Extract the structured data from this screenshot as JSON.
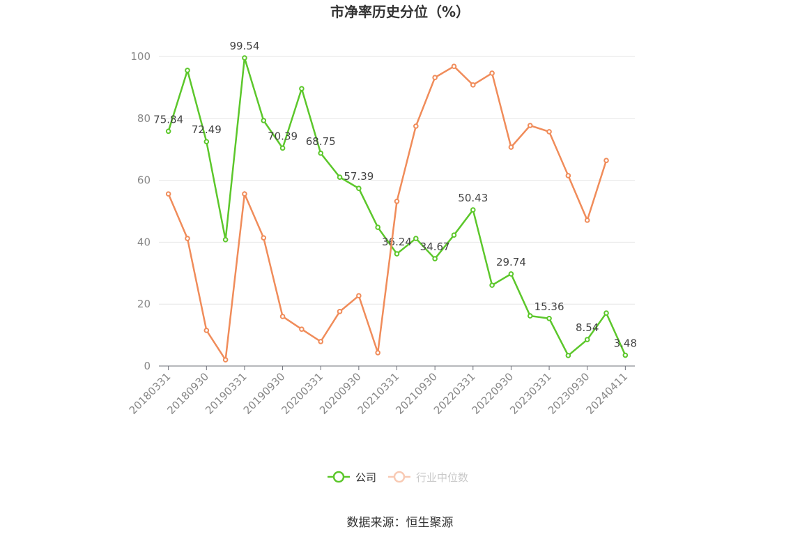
{
  "chart_data": {
    "type": "line",
    "title": "市净率历史分位（%）",
    "source": "数据来源：恒生聚源",
    "categories": [
      "20180331",
      null,
      "20180930",
      null,
      "20190331",
      null,
      "20190930",
      null,
      "20200331",
      null,
      "20200930",
      null,
      "20210331",
      null,
      "20210930",
      null,
      "20220331",
      null,
      "20220930",
      null,
      "20230331",
      null,
      "20230930",
      null,
      "20240411"
    ],
    "series": [
      {
        "name": "公司",
        "color": "#5cc72b",
        "values": [
          75.84,
          95.5,
          72.49,
          40.8,
          99.54,
          79.3,
          70.39,
          89.6,
          68.75,
          61.0,
          57.39,
          44.8,
          36.24,
          41.2,
          34.67,
          42.3,
          50.43,
          26.1,
          29.74,
          16.2,
          15.36,
          3.4,
          8.54,
          17.1,
          3.48
        ],
        "value_labels": [
          "75.84",
          null,
          "72.49",
          null,
          "99.54",
          null,
          "70.39",
          null,
          "68.75",
          null,
          "57.39",
          null,
          "36.24",
          null,
          "34.67",
          null,
          "50.43",
          null,
          "29.74",
          null,
          "15.36",
          null,
          "8.54",
          null,
          "3.48"
        ]
      },
      {
        "name": "行业中位数",
        "color": "#f08c5a",
        "values": [
          55.6,
          41.2,
          11.5,
          2.0,
          55.6,
          41.4,
          16.0,
          11.9,
          7.9,
          17.6,
          22.7,
          4.3,
          53.2,
          77.5,
          93.2,
          96.8,
          90.8,
          94.6,
          70.7,
          77.7,
          75.7,
          61.5,
          47.1,
          66.4,
          null
        ]
      }
    ],
    "ylim": [
      0,
      100
    ],
    "yticks": [
      0,
      20,
      40,
      60,
      80,
      100
    ],
    "grid": true
  }
}
